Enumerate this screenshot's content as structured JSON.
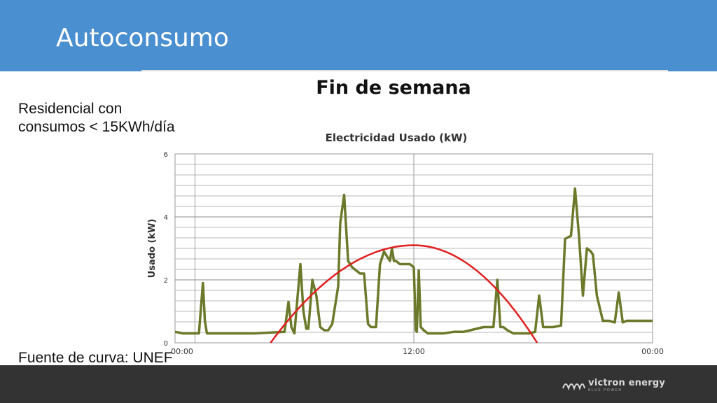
{
  "slide": {
    "title": "Autoconsumo",
    "side_text_line1": "Residencial con",
    "side_text_line2": "consumos < 15KWh/día",
    "source_text": "Fuente de curva: UNEF",
    "logo_text": "victron energy",
    "logo_sub": "BLUE POWER"
  },
  "colors": {
    "header": "#4a8fd0",
    "footer": "#333333",
    "series": "#6b7a2a",
    "curve": "#e02020"
  },
  "chart_data": {
    "type": "line",
    "title": "Fin de semana",
    "subtitle": "Electricidad Usado (kW)",
    "xlabel": "",
    "ylabel": "Usado (kW)",
    "xlim": [
      0,
      24
    ],
    "ylim": [
      0,
      6
    ],
    "x_ticks": [
      "00:00",
      "12:00",
      "00:00"
    ],
    "y_ticks": [
      "0",
      "2",
      "4",
      "6"
    ],
    "grid": true,
    "series": [
      {
        "values_x": [
          0,
          0.4,
          1.2,
          1.4,
          1.5,
          1.6,
          1.8,
          2.6,
          4.0,
          5.5,
          5.7,
          5.85,
          6.0,
          6.3,
          6.45,
          6.6,
          6.7,
          6.9,
          7.1,
          7.3,
          7.5,
          7.7,
          7.9,
          8.2,
          8.3,
          8.5,
          8.7,
          8.9,
          9.1,
          9.3,
          9.5,
          9.7,
          9.85,
          9.95,
          10.1,
          10.3,
          10.5,
          10.8,
          10.9,
          11.0,
          11.1,
          11.3,
          11.6,
          11.8,
          12.0,
          12.1,
          12.15,
          12.25,
          12.35,
          12.5,
          12.7,
          13.0,
          13.5,
          14.0,
          14.5,
          15.5,
          16.0,
          16.2,
          16.35,
          16.5,
          16.7,
          17.0,
          17.2,
          17.5,
          17.8,
          18.1,
          18.3,
          18.5,
          18.7,
          19.0,
          19.4,
          19.6,
          19.9,
          20.1,
          20.3,
          20.5,
          20.7,
          20.9,
          21.0,
          21.2,
          21.5,
          21.8,
          22.1,
          22.3,
          22.5,
          22.7,
          23.0,
          23.5,
          24.0
        ],
        "values_y": [
          0.35,
          0.3,
          0.3,
          1.9,
          0.7,
          0.3,
          0.3,
          0.3,
          0.3,
          0.35,
          1.3,
          0.5,
          0.3,
          2.5,
          1.0,
          0.45,
          0.45,
          2.0,
          1.5,
          0.5,
          0.4,
          0.4,
          0.6,
          1.8,
          3.8,
          4.7,
          2.6,
          2.4,
          2.3,
          2.2,
          2.2,
          0.6,
          0.5,
          0.5,
          0.5,
          2.5,
          2.9,
          2.6,
          3.0,
          2.6,
          2.6,
          2.5,
          2.5,
          2.5,
          2.4,
          0.4,
          0.35,
          2.3,
          0.5,
          0.4,
          0.3,
          0.3,
          0.3,
          0.35,
          0.35,
          0.5,
          0.5,
          2.0,
          0.5,
          0.5,
          0.4,
          0.3,
          0.3,
          0.3,
          0.3,
          0.35,
          1.5,
          0.5,
          0.5,
          0.5,
          0.55,
          3.3,
          3.4,
          4.9,
          3.4,
          1.5,
          3.0,
          2.9,
          2.8,
          1.5,
          0.7,
          0.7,
          0.65,
          1.6,
          0.65,
          0.7,
          0.7,
          0.7,
          0.7
        ]
      }
    ],
    "overlay_curve": {
      "x_start": 4.8,
      "x_peak": 12.0,
      "x_end": 18.2,
      "y_peak": 3.1
    }
  }
}
